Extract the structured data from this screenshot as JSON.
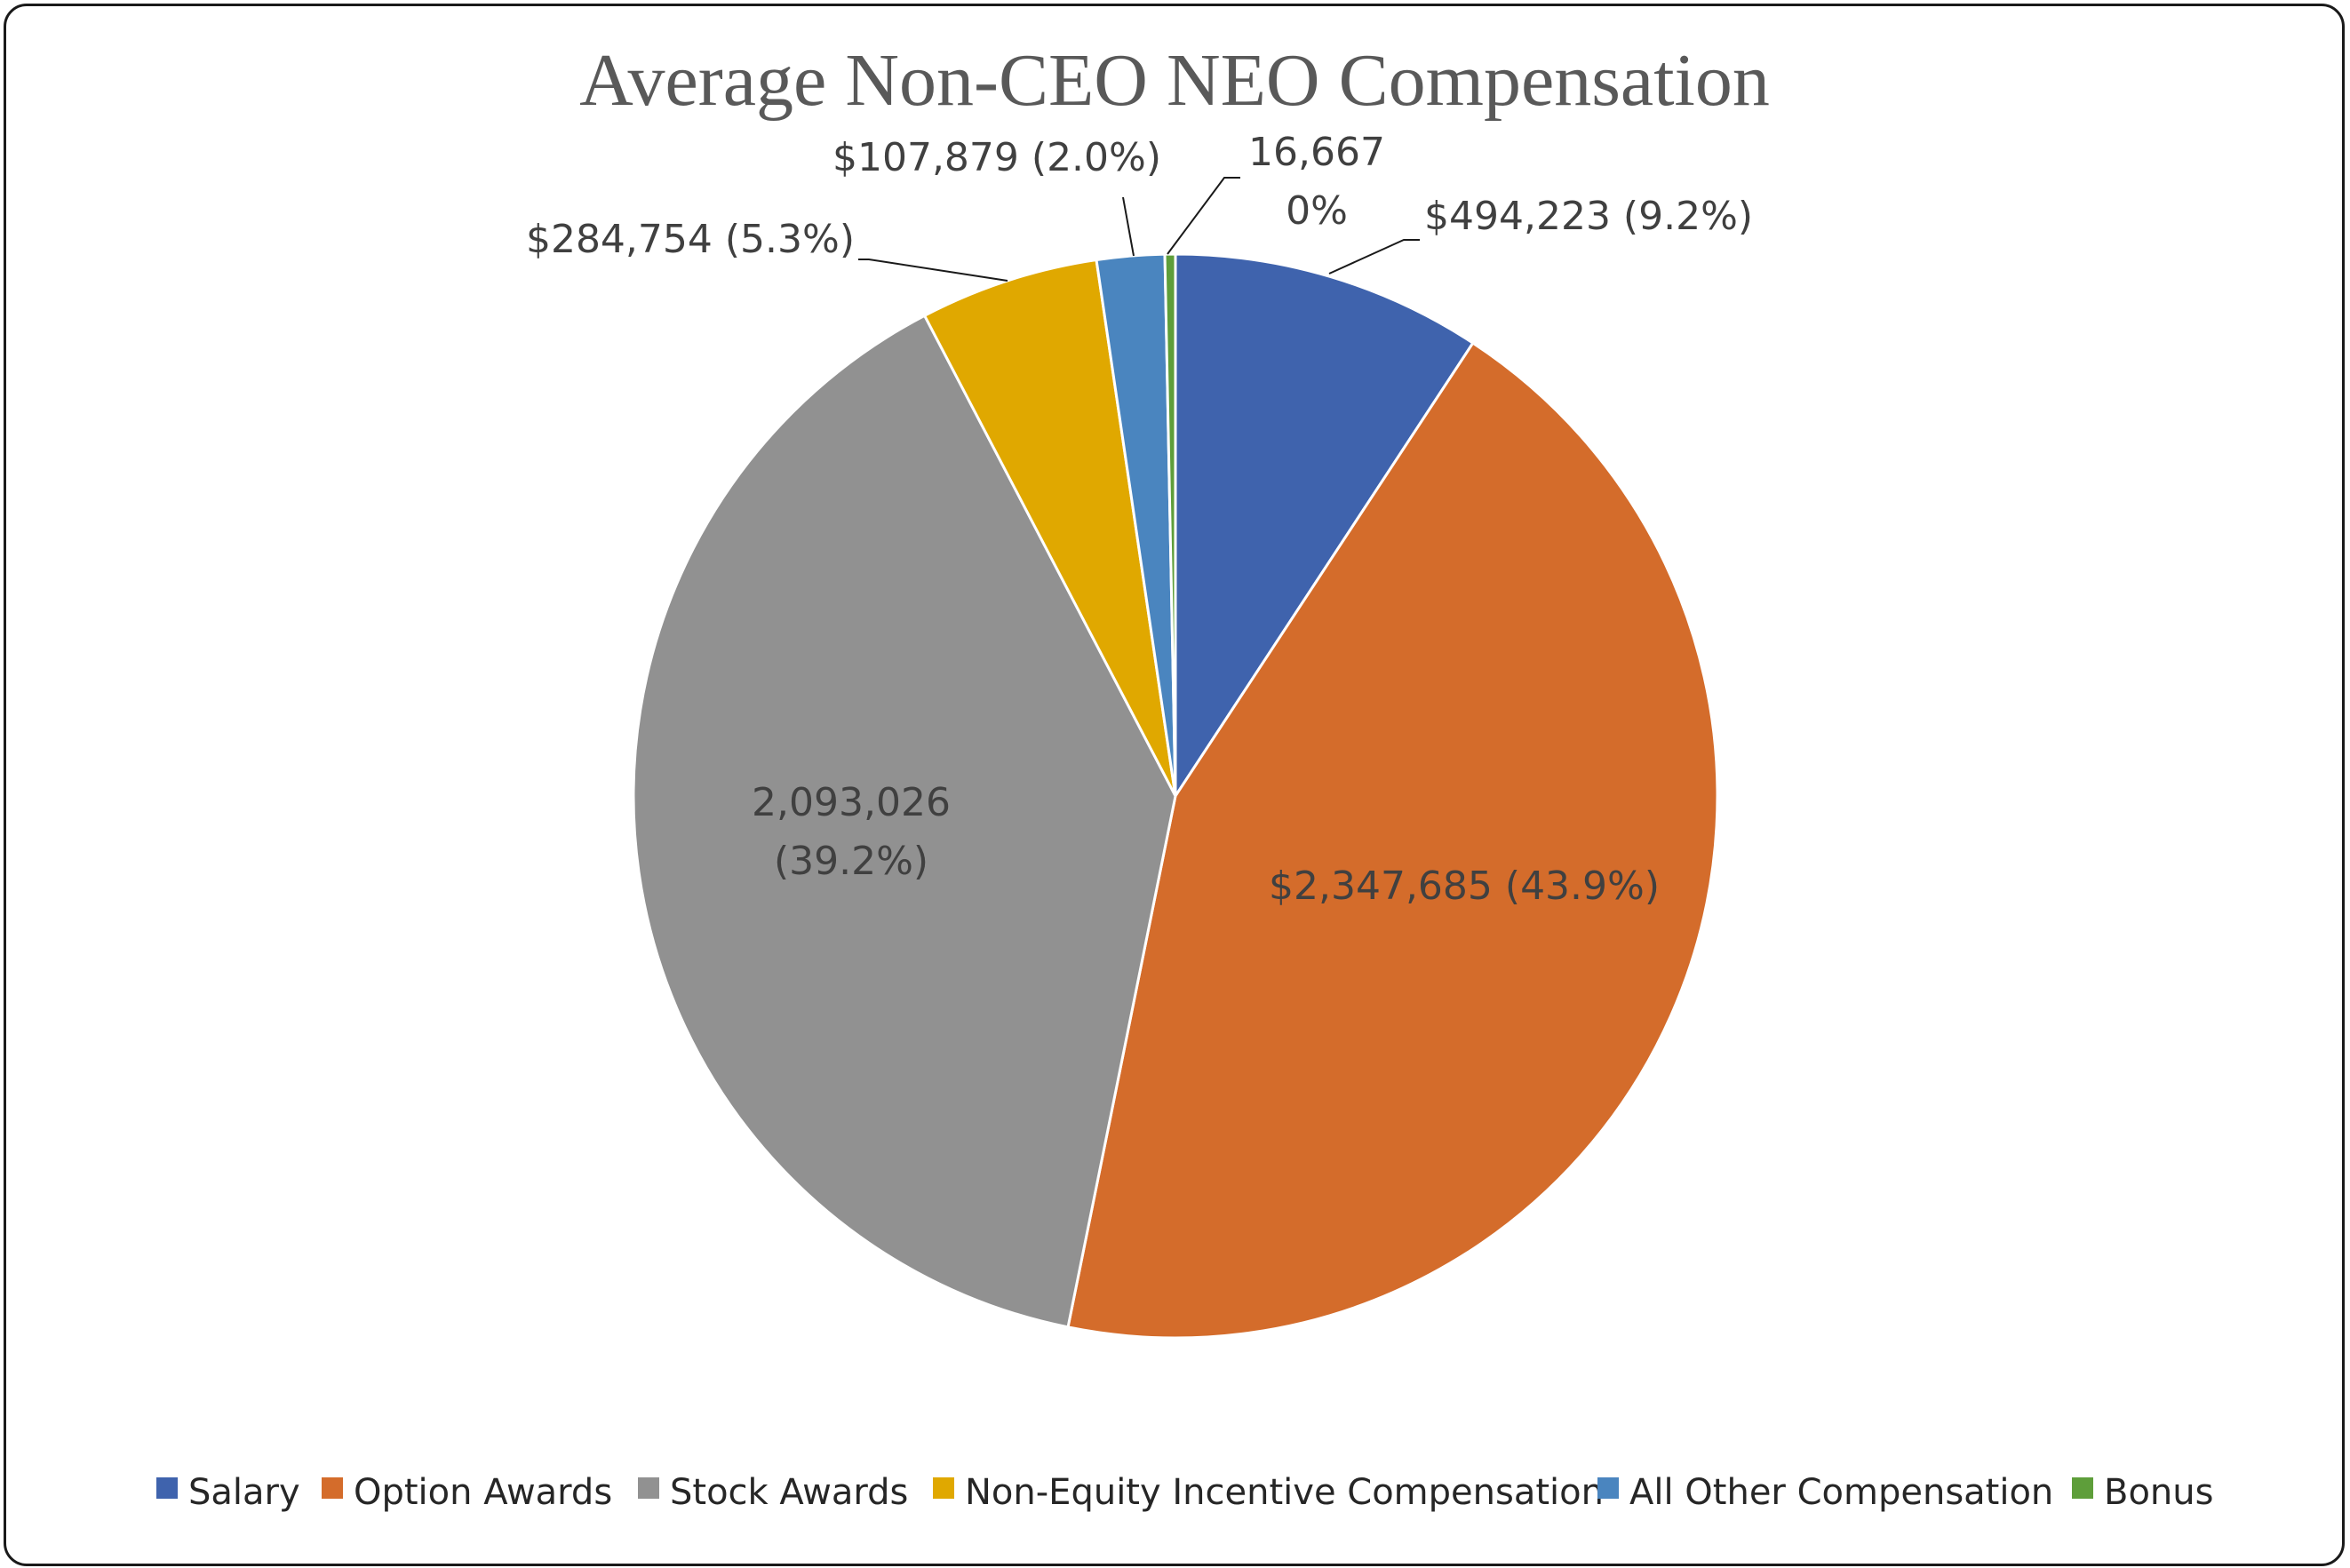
{
  "chart_data": {
    "type": "pie",
    "title": "Average Non-CEO NEO Compensation",
    "slices": [
      {
        "name": "Salary",
        "value": 494223,
        "label_lines": [
          "$494,223 (9.2%)"
        ],
        "color": "#3F63AD"
      },
      {
        "name": "Option Awards",
        "value": 2347685,
        "label_lines": [
          "$2,347,685 (43.9%)"
        ],
        "color": "#D46C2B"
      },
      {
        "name": "Stock Awards",
        "value": 2093026,
        "label_lines": [
          "2,093,026",
          "(39.2%)"
        ],
        "color": "#919191"
      },
      {
        "name": "Non-Equity Incentive Compensation",
        "value": 284754,
        "label_lines": [
          "$284,754 (5.3%)"
        ],
        "color": "#E0A800"
      },
      {
        "name": "All Other Compensation",
        "value": 107879,
        "label_lines": [
          "$107,879 (2.0%)"
        ],
        "color": "#4A85BF"
      },
      {
        "name": "Bonus",
        "value": 16667,
        "label_lines": [
          "16,667",
          "0%"
        ],
        "color": "#5E9E3A"
      }
    ],
    "start_angle": "12 o'clock",
    "direction": "clockwise",
    "legend_position": "bottom"
  }
}
